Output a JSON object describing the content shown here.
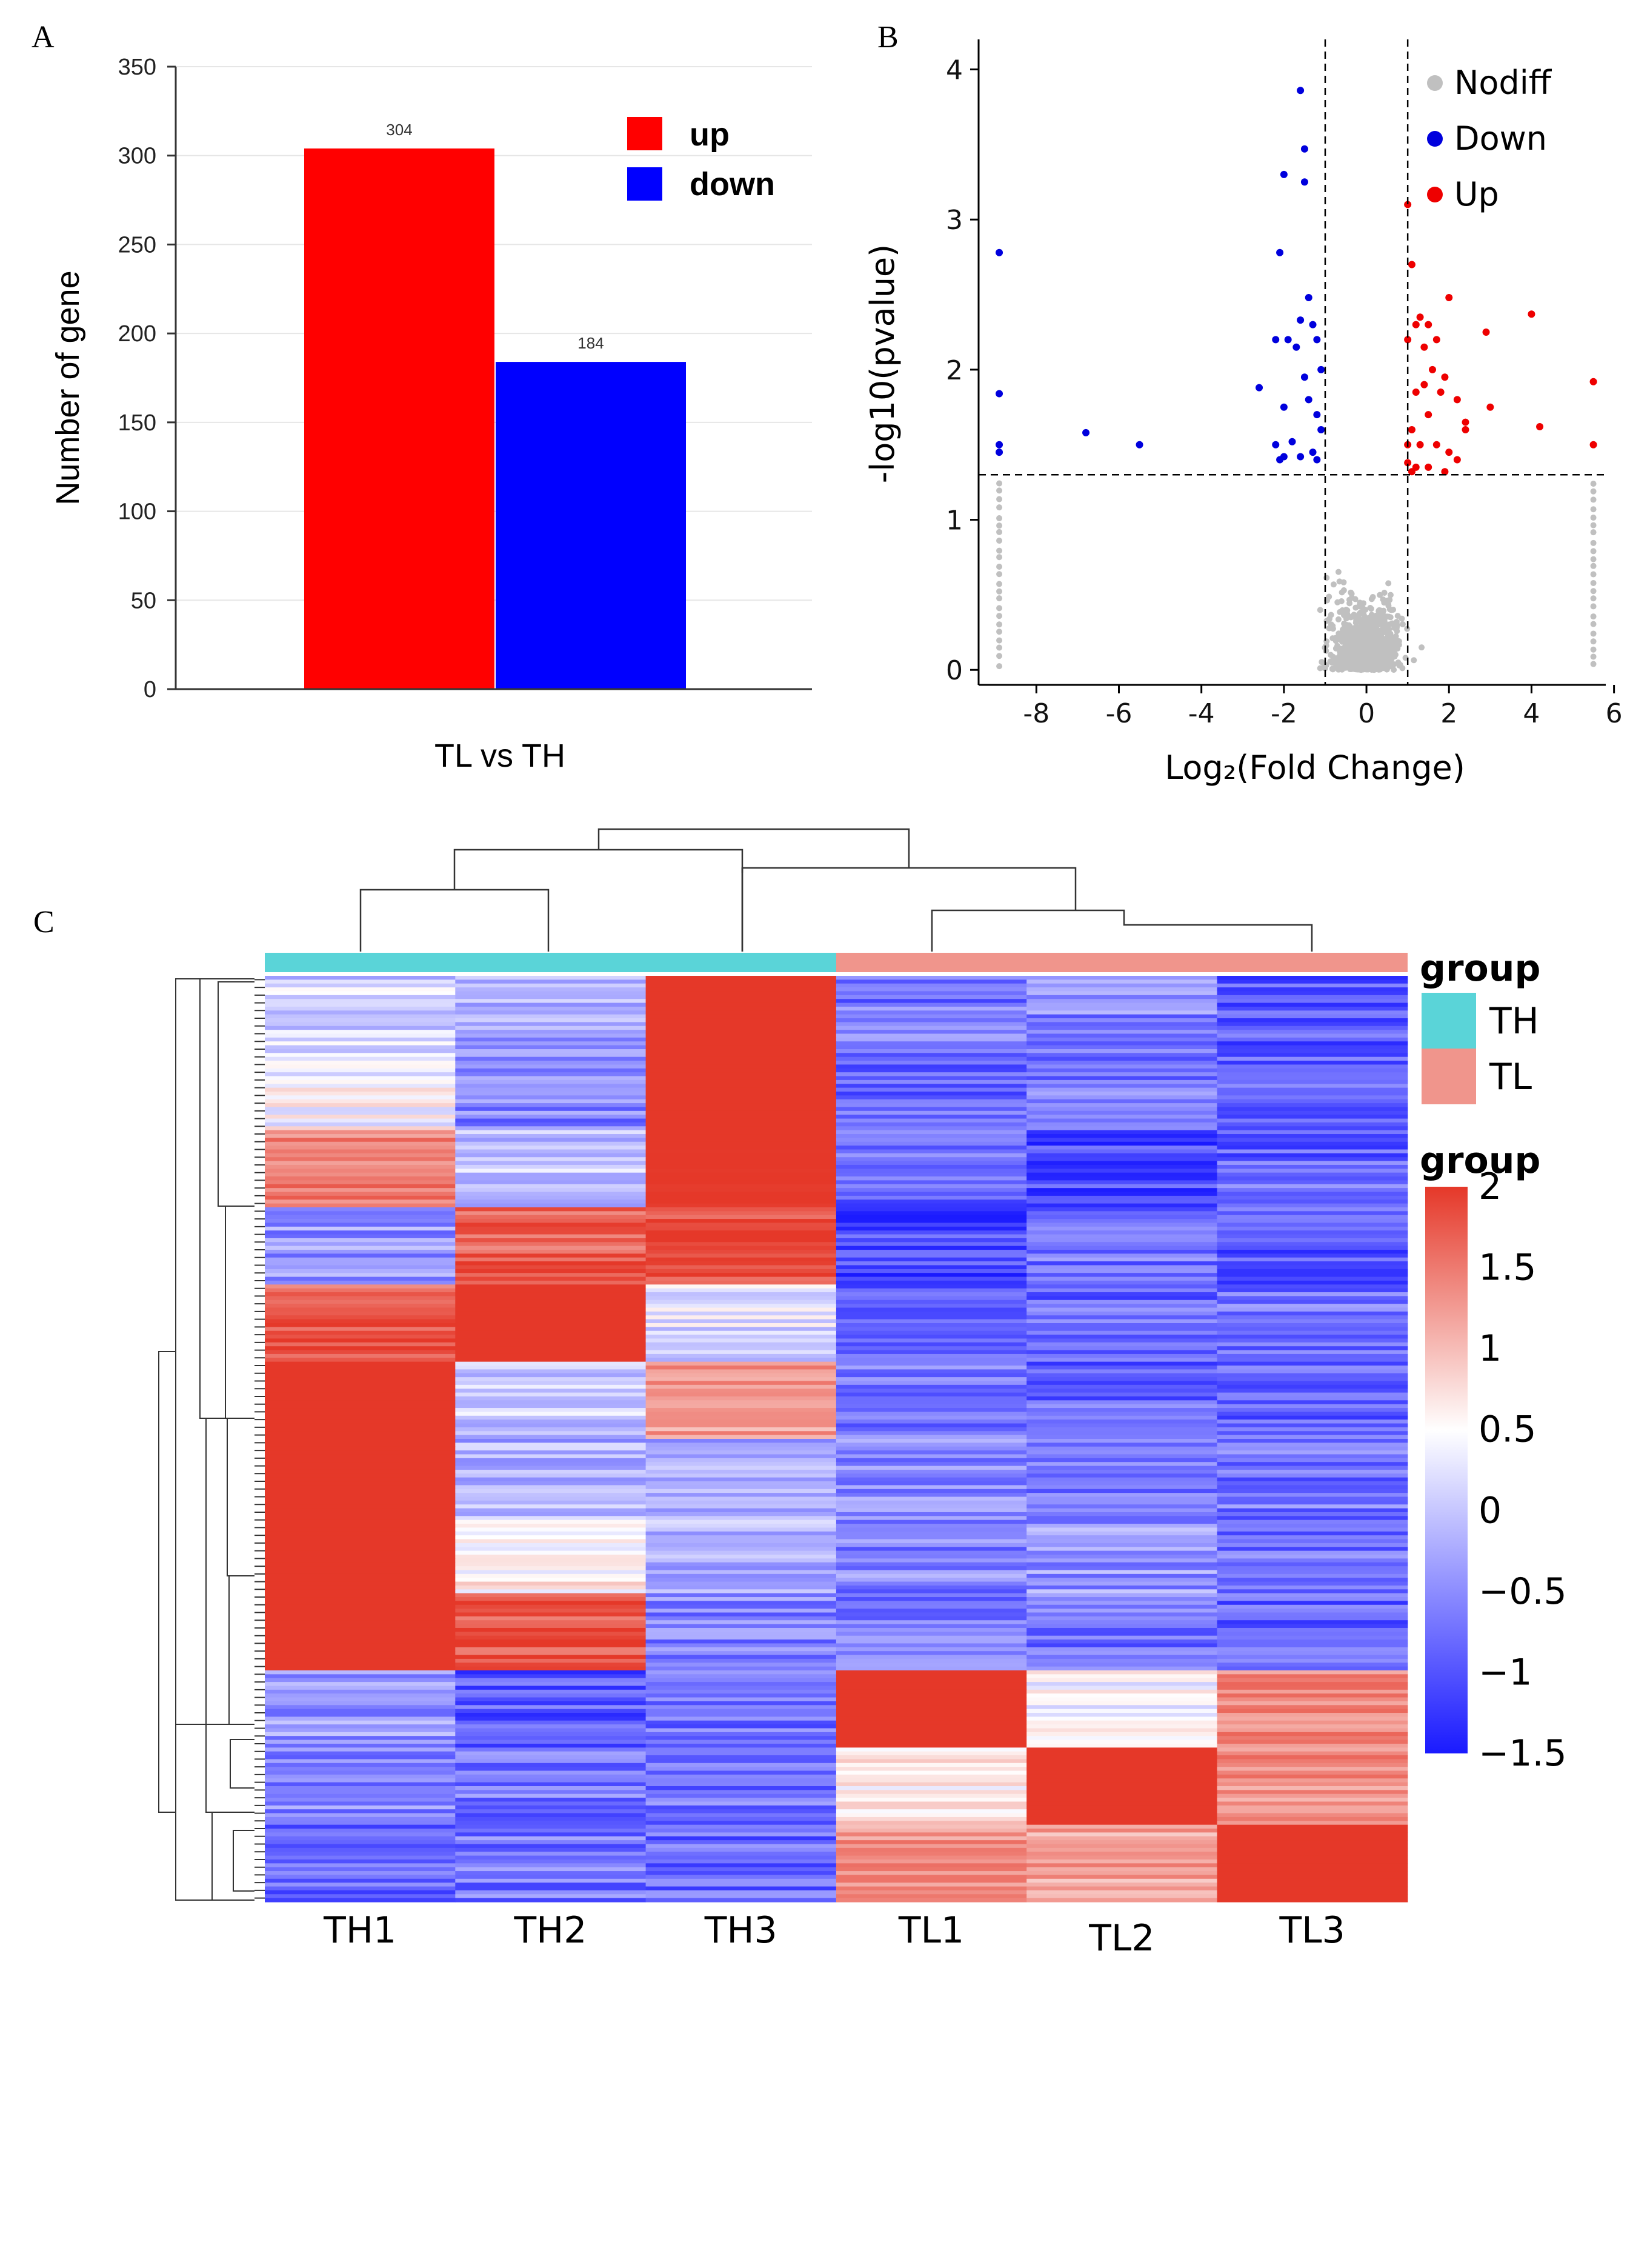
{
  "chart_data": [
    {
      "panel": "A",
      "type": "bar",
      "xlabel": "TL vs TH",
      "ylabel": "Number of gene",
      "ylim": [
        0,
        350
      ],
      "yticks": [
        0,
        50,
        100,
        150,
        200,
        250,
        300,
        350
      ],
      "grid": true,
      "legend_position": "top-right",
      "series": [
        {
          "name": "up",
          "value": 304,
          "label": "304",
          "color": "#ff0000"
        },
        {
          "name": "down",
          "value": 184,
          "label": "184",
          "color": "#0000ff"
        }
      ]
    },
    {
      "panel": "B",
      "type": "scatter",
      "xlabel": "Log₂(Fold Change)",
      "ylabel": "-log10(pvalue)",
      "xlim": [
        -9.4,
        5.8
      ],
      "ylim": [
        -0.1,
        4.2
      ],
      "xticks": [
        -8,
        -6,
        -4,
        -2,
        0,
        2,
        4,
        6
      ],
      "yticks": [
        0,
        1,
        2,
        3,
        4
      ],
      "thresholds": {
        "log2fc": [
          -1,
          1
        ],
        "neg_log10_p": 1.3
      },
      "legend_position": "top-right",
      "series": [
        {
          "name": "Nodiff",
          "color": "#c0c0c0",
          "points": "many (background cloud)"
        },
        {
          "name": "Down",
          "color": "#0000dd",
          "points": [
            [
              -8.9,
              2.78
            ],
            [
              -8.9,
              1.84
            ],
            [
              -8.9,
              1.5
            ],
            [
              -8.9,
              1.45
            ],
            [
              -6.8,
              1.58
            ],
            [
              -5.5,
              1.5
            ],
            [
              -1.6,
              3.86
            ],
            [
              -1.5,
              3.47
            ],
            [
              -1.5,
              3.25
            ],
            [
              -2.0,
              3.3
            ],
            [
              -2.1,
              2.78
            ],
            [
              -1.4,
              2.48
            ],
            [
              -2.2,
              2.2
            ],
            [
              -1.9,
              2.2
            ],
            [
              -1.2,
              2.2
            ],
            [
              -1.6,
              2.33
            ],
            [
              -1.3,
              2.3
            ],
            [
              -1.7,
              2.15
            ],
            [
              -1.1,
              2.0
            ],
            [
              -1.5,
              1.95
            ],
            [
              -2.6,
              1.88
            ],
            [
              -1.4,
              1.8
            ],
            [
              -2.0,
              1.75
            ],
            [
              -1.2,
              1.7
            ],
            [
              -1.1,
              1.6
            ],
            [
              -2.2,
              1.5
            ],
            [
              -1.8,
              1.52
            ],
            [
              -1.3,
              1.45
            ],
            [
              -2.0,
              1.42
            ],
            [
              -1.6,
              1.42
            ],
            [
              -1.2,
              1.4
            ],
            [
              -2.1,
              1.4
            ]
          ]
        },
        {
          "name": "Up",
          "color": "#ee0000",
          "points": [
            [
              1.0,
              3.1
            ],
            [
              1.1,
              2.7
            ],
            [
              1.3,
              2.35
            ],
            [
              1.5,
              2.3
            ],
            [
              1.2,
              2.3
            ],
            [
              1.7,
              2.2
            ],
            [
              2.0,
              2.48
            ],
            [
              1.4,
              2.15
            ],
            [
              1.0,
              2.2
            ],
            [
              1.6,
              2.0
            ],
            [
              1.9,
              1.95
            ],
            [
              2.2,
              1.8
            ],
            [
              1.8,
              1.85
            ],
            [
              1.2,
              1.85
            ],
            [
              1.5,
              1.7
            ],
            [
              2.4,
              1.65
            ],
            [
              1.1,
              1.6
            ],
            [
              1.3,
              1.5
            ],
            [
              1.7,
              1.5
            ],
            [
              2.0,
              1.45
            ],
            [
              2.2,
              1.4
            ],
            [
              1.0,
              1.38
            ],
            [
              1.2,
              1.35
            ],
            [
              1.5,
              1.35
            ],
            [
              1.1,
              1.32
            ],
            [
              3.0,
              1.75
            ],
            [
              2.9,
              2.25
            ],
            [
              4.0,
              2.37
            ],
            [
              4.2,
              1.62
            ],
            [
              5.5,
              1.92
            ],
            [
              5.5,
              1.5
            ],
            [
              1.9,
              1.32
            ],
            [
              1.4,
              1.9
            ],
            [
              1.0,
              1.5
            ],
            [
              2.4,
              1.6
            ]
          ]
        }
      ]
    },
    {
      "panel": "C",
      "type": "heatmap",
      "columns": [
        "TH1",
        "TH2",
        "TH3",
        "TL1",
        "TL2",
        "TL3"
      ],
      "column_groups": [
        "TH",
        "TH",
        "TH",
        "TL",
        "TL",
        "TL"
      ],
      "group_legend_title": "group",
      "groups": [
        {
          "name": "TH",
          "color": "#5ad4d8"
        },
        {
          "name": "TL",
          "color": "#f0958c"
        }
      ],
      "colorbar_title": "group",
      "colorbar_ticks": [
        "2",
        "1.5",
        "1",
        "0.5",
        "0",
        "−0.5",
        "−1",
        "−1.5"
      ],
      "color_range": [
        -1.5,
        2
      ],
      "row_blocks": [
        [
          -0.3,
          -0.6,
          2.0,
          -0.9,
          -0.8,
          -1.1
        ],
        [
          0.0,
          -0.8,
          2.0,
          -1.0,
          -0.9,
          -1.0
        ],
        [
          1.0,
          -0.4,
          1.8,
          -1.0,
          -1.2,
          -1.0
        ],
        [
          -0.7,
          1.2,
          1.4,
          -1.2,
          -0.9,
          -1.1
        ],
        [
          1.2,
          2.0,
          -0.2,
          -1.0,
          -1.0,
          -0.9
        ],
        [
          1.9,
          -0.3,
          0.8,
          -0.9,
          -1.0,
          -1.0
        ],
        [
          2.0,
          -0.5,
          -0.6,
          -0.8,
          -0.9,
          -0.9
        ],
        [
          2.0,
          0.1,
          -0.5,
          -0.8,
          -0.7,
          -0.9
        ],
        [
          1.8,
          1.3,
          -0.8,
          -0.9,
          -0.9,
          -1.0
        ],
        [
          -0.7,
          -1.1,
          -0.9,
          2.0,
          0.0,
          0.9
        ],
        [
          -0.8,
          -0.9,
          -0.9,
          0.2,
          1.8,
          0.8
        ],
        [
          -1.0,
          -0.9,
          -1.0,
          0.8,
          0.7,
          2.0
        ]
      ]
    }
  ],
  "panels": {
    "a": "A",
    "b": "B",
    "c": "C"
  },
  "bar_legend": {
    "up": "up",
    "down": "down"
  },
  "volcano_legend": {
    "nodiff": "Nodiff",
    "down": "Down",
    "up": "Up"
  },
  "heat_legend": {
    "group_title": "group",
    "th": "TH",
    "tl": "TL",
    "scale_title": "group"
  }
}
